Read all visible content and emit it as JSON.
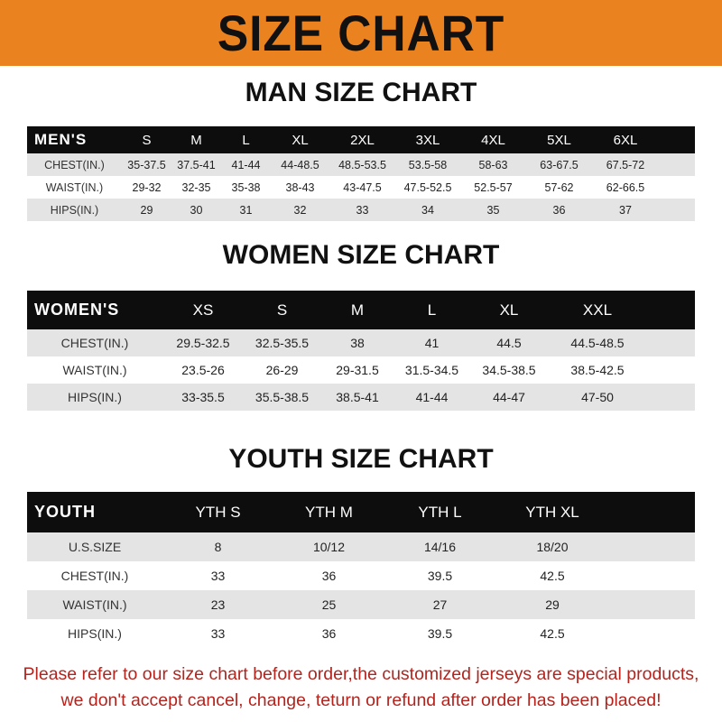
{
  "title": "SIZE CHART",
  "colors": {
    "banner": "#e9821f",
    "header_row": "#0d0d0d",
    "stripe": "#e4e4e4",
    "note": "#b5231d"
  },
  "men": {
    "title": "MAN SIZE CHART",
    "header": [
      "MEN'S",
      "S",
      "M",
      "L",
      "XL",
      "2XL",
      "3XL",
      "4XL",
      "5XL",
      "6XL"
    ],
    "rows": [
      [
        "CHEST(IN.)",
        "35-37.5",
        "37.5-41",
        "41-44",
        "44-48.5",
        "48.5-53.5",
        "53.5-58",
        "58-63",
        "63-67.5",
        "67.5-72"
      ],
      [
        "WAIST(IN.)",
        "29-32",
        "32-35",
        "35-38",
        "38-43",
        "43-47.5",
        "47.5-52.5",
        "52.5-57",
        "57-62",
        "62-66.5"
      ],
      [
        "HIPS(IN.)",
        "29",
        "30",
        "31",
        "32",
        "33",
        "34",
        "35",
        "36",
        "37"
      ]
    ]
  },
  "women": {
    "title": "WOMEN SIZE CHART",
    "header": [
      "WOMEN'S",
      "XS",
      "S",
      "M",
      "L",
      "XL",
      "XXL"
    ],
    "rows": [
      [
        "CHEST(IN.)",
        "29.5-32.5",
        "32.5-35.5",
        "38",
        "41",
        "44.5",
        "44.5-48.5"
      ],
      [
        "WAIST(IN.)",
        "23.5-26",
        "26-29",
        "29-31.5",
        "31.5-34.5",
        "34.5-38.5",
        "38.5-42.5"
      ],
      [
        "HIPS(IN.)",
        "33-35.5",
        "35.5-38.5",
        "38.5-41",
        "41-44",
        "44-47",
        "47-50"
      ]
    ]
  },
  "youth": {
    "title": "YOUTH SIZE CHART",
    "header": [
      "YOUTH",
      "YTH S",
      "YTH M",
      "YTH L",
      "YTH XL"
    ],
    "rows": [
      [
        "U.S.SIZE",
        "8",
        "10/12",
        "14/16",
        "18/20"
      ],
      [
        "CHEST(IN.)",
        "33",
        "36",
        "39.5",
        "42.5"
      ],
      [
        "WAIST(IN.)",
        "23",
        "25",
        "27",
        "29"
      ],
      [
        "HIPS(IN.)",
        "33",
        "36",
        "39.5",
        "42.5"
      ]
    ]
  },
  "note": {
    "line1": "Please refer to our size chart before order,the customized jerseys are special products,",
    "line2": "we don't accept cancel, change, teturn or refund after order has been placed!"
  }
}
